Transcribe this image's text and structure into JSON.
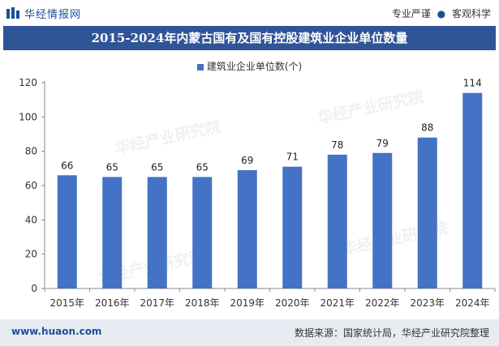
{
  "header": {
    "site_name": "华经情报网",
    "tag1": "专业严谨",
    "separator": "●",
    "tag2": "客观科学"
  },
  "watermark": "华经产业研究院",
  "footer": {
    "url": "www.huaon.com",
    "source": "数据来源：国家统计局，华经产业研究院整理"
  },
  "colors": {
    "bar": "#4472c4",
    "title_bg": "#2f5597"
  },
  "chart_data": {
    "type": "bar",
    "title": "2015-2024年内蒙古国有及国有控股建筑业企业单位数量",
    "categories": [
      "2015年",
      "2016年",
      "2017年",
      "2018年",
      "2019年",
      "2020年",
      "2021年",
      "2022年",
      "2023年",
      "2024年"
    ],
    "series": [
      {
        "name": "建筑业企业单位数(个)",
        "values": [
          66,
          65,
          65,
          65,
          69,
          71,
          78,
          79,
          88,
          114
        ]
      }
    ],
    "ylim": [
      0,
      120
    ],
    "yticks": [
      0,
      20,
      40,
      60,
      80,
      100,
      120
    ],
    "legend": "top-center",
    "grid": false
  }
}
